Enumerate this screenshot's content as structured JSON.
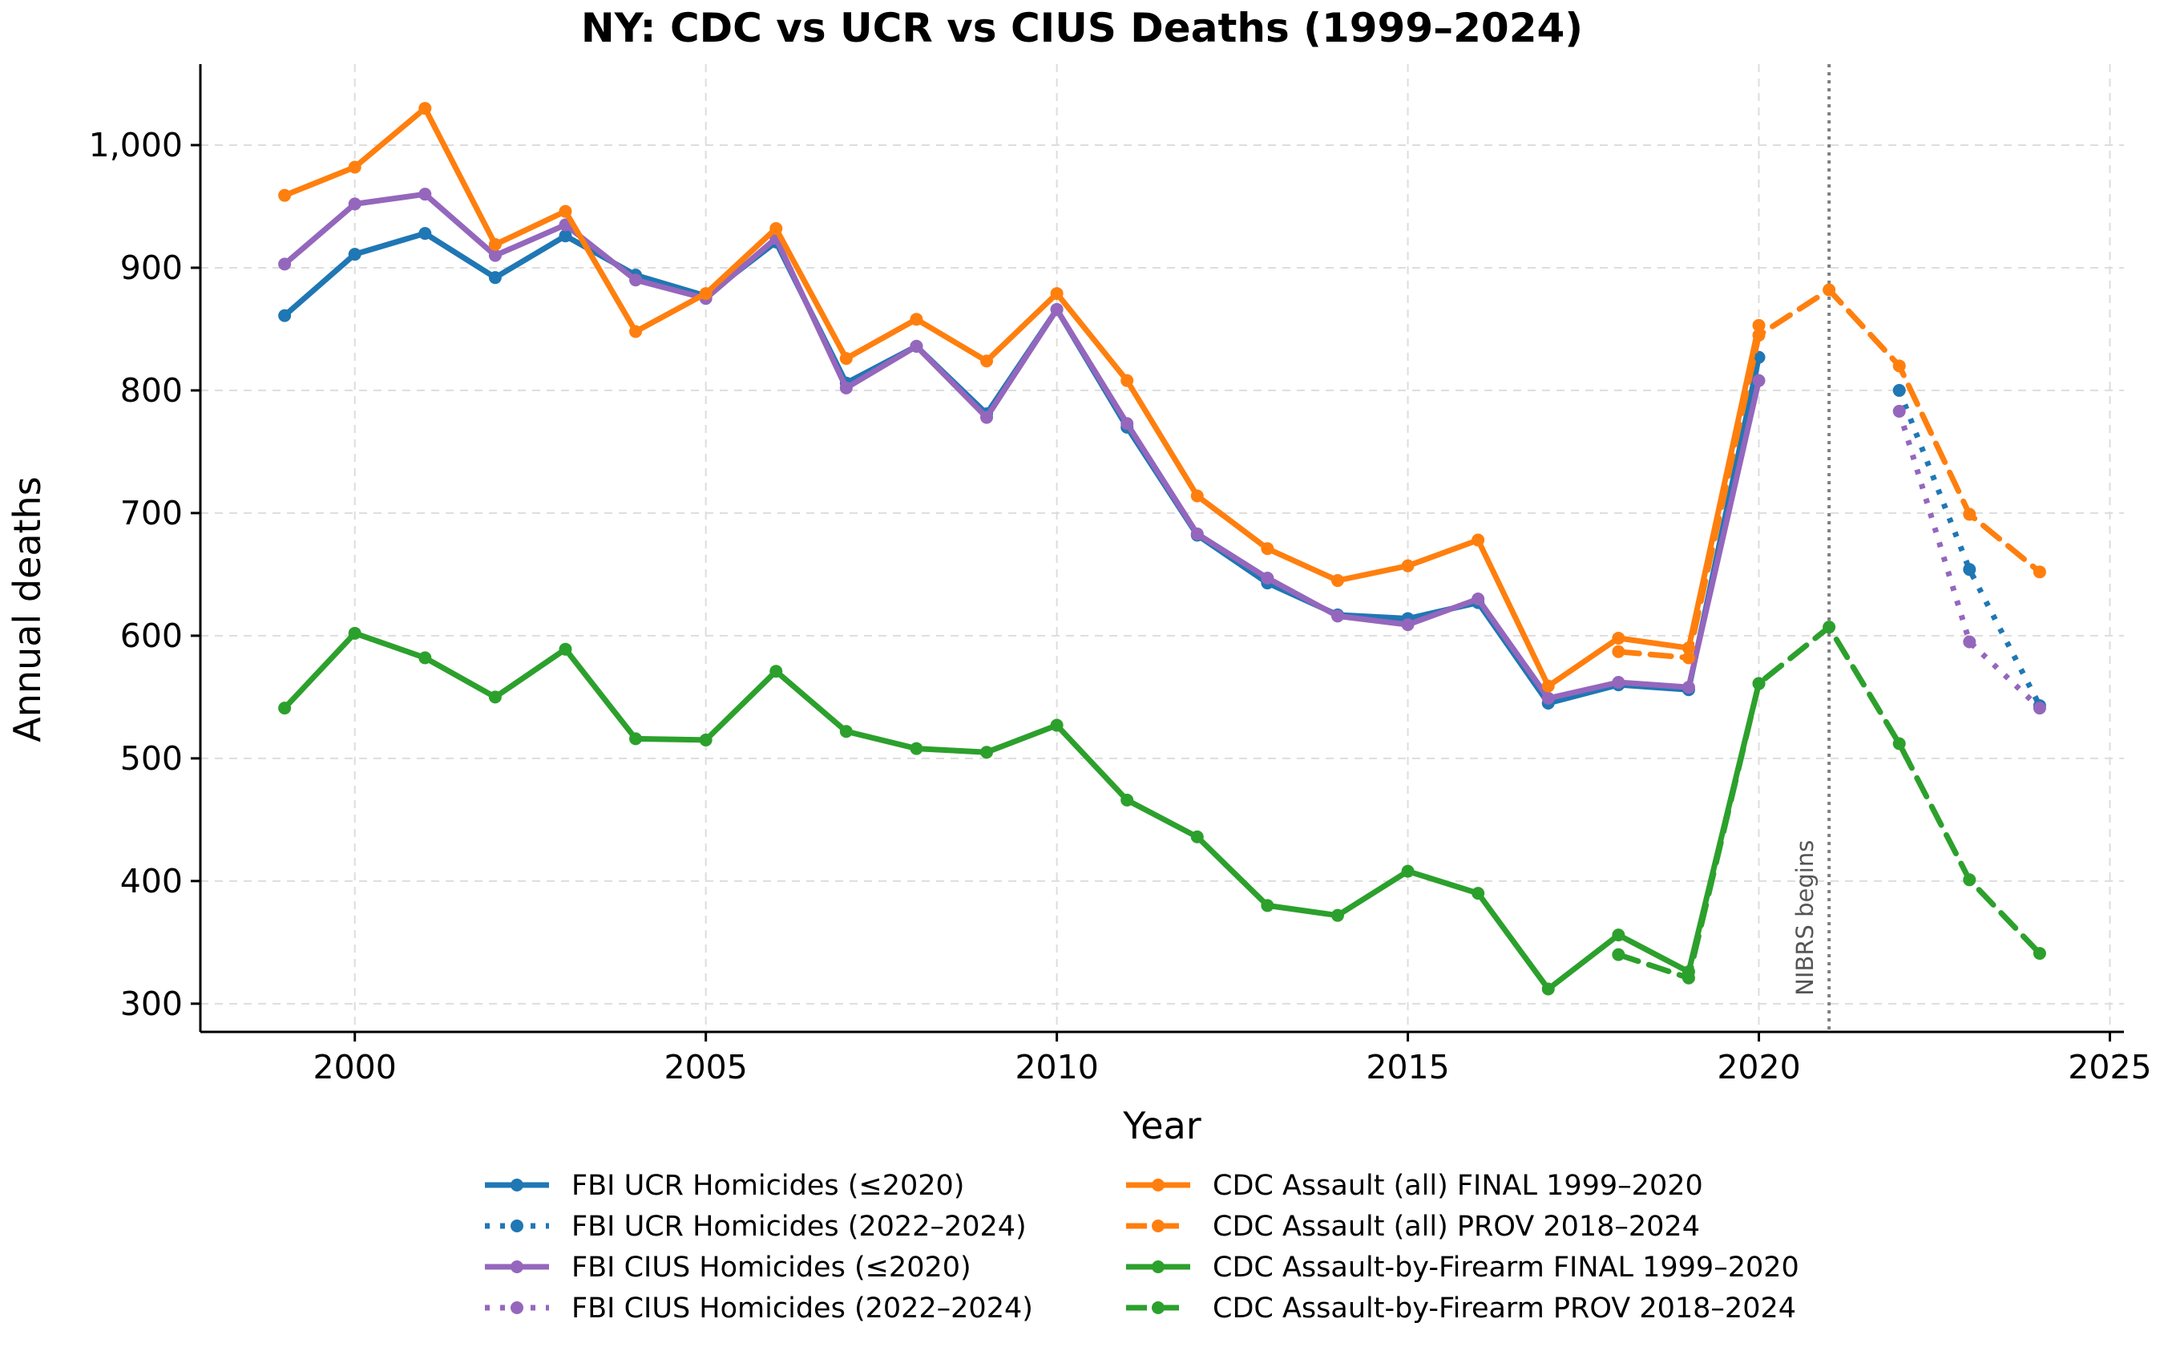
{
  "chart_data": {
    "type": "line",
    "title": "NY: CDC vs UCR vs CIUS Deaths (1999–2024)",
    "xlabel": "Year",
    "ylabel": "Annual deaths",
    "xlim": [
      1997.8,
      2025.2
    ],
    "ylim": [
      277,
      1066
    ],
    "xticks": [
      2000,
      2005,
      2010,
      2015,
      2020,
      2025
    ],
    "xtick_labels": [
      "2000",
      "2005",
      "2010",
      "2015",
      "2020",
      "2025"
    ],
    "yticks": [
      300,
      400,
      500,
      600,
      700,
      800,
      900,
      1000
    ],
    "ytick_labels": [
      "300",
      "400",
      "500",
      "600",
      "700",
      "800",
      "900",
      "1,000"
    ],
    "grid": true,
    "legend_position": "bottom",
    "annotation": {
      "x": 2021,
      "text": "NIBRS begins",
      "color": "#808080"
    },
    "series": [
      {
        "name": "FBI UCR Homicides (≤2020)",
        "color": "#1f77b4",
        "style": "solid",
        "x": [
          1999,
          2000,
          2001,
          2002,
          2003,
          2004,
          2005,
          2006,
          2007,
          2008,
          2009,
          2010,
          2011,
          2012,
          2013,
          2014,
          2015,
          2016,
          2017,
          2018,
          2019,
          2020
        ],
        "y": [
          861,
          911,
          928,
          892,
          926,
          894,
          877,
          921,
          806,
          836,
          781,
          866,
          770,
          682,
          643,
          617,
          614,
          627,
          545,
          560,
          556,
          827
        ]
      },
      {
        "name": "FBI UCR Homicides (2022–2024)",
        "color": "#1f77b4",
        "style": "dotted",
        "x": [
          2022,
          2023,
          2024
        ],
        "y": [
          800,
          654,
          543
        ]
      },
      {
        "name": "FBI CIUS Homicides (≤2020)",
        "color": "#9467bd",
        "style": "solid",
        "x": [
          1999,
          2000,
          2001,
          2002,
          2003,
          2004,
          2005,
          2006,
          2007,
          2008,
          2009,
          2010,
          2011,
          2012,
          2013,
          2014,
          2015,
          2016,
          2017,
          2018,
          2019,
          2020
        ],
        "y": [
          903,
          952,
          960,
          910,
          935,
          890,
          875,
          924,
          802,
          836,
          778,
          866,
          773,
          683,
          647,
          616,
          609,
          630,
          549,
          562,
          558,
          808
        ]
      },
      {
        "name": "FBI CIUS Homicides (2022–2024)",
        "color": "#9467bd",
        "style": "dotted",
        "x": [
          2022,
          2023,
          2024
        ],
        "y": [
          783,
          595,
          541
        ]
      },
      {
        "name": "CDC Assault (all) FINAL 1999–2020",
        "color": "#ff7f0e",
        "style": "solid",
        "x": [
          1999,
          2000,
          2001,
          2002,
          2003,
          2004,
          2005,
          2006,
          2007,
          2008,
          2009,
          2010,
          2011,
          2012,
          2013,
          2014,
          2015,
          2016,
          2017,
          2018,
          2019,
          2020
        ],
        "y": [
          959,
          982,
          1030,
          919,
          946,
          848,
          879,
          932,
          826,
          858,
          824,
          879,
          808,
          714,
          671,
          645,
          657,
          678,
          559,
          598,
          590,
          853
        ]
      },
      {
        "name": "CDC Assault (all) PROV 2018–2024",
        "color": "#ff7f0e",
        "style": "dashed",
        "x": [
          2018,
          2019,
          2020,
          2021,
          2022,
          2023,
          2024
        ],
        "y": [
          587,
          582,
          845,
          882,
          820,
          699,
          652
        ]
      },
      {
        "name": "CDC Assault-by-Firearm FINAL 1999–2020",
        "color": "#2ca02c",
        "style": "solid",
        "x": [
          1999,
          2000,
          2001,
          2002,
          2003,
          2004,
          2005,
          2006,
          2007,
          2008,
          2009,
          2010,
          2011,
          2012,
          2013,
          2014,
          2015,
          2016,
          2017,
          2018,
          2019,
          2020
        ],
        "y": [
          541,
          602,
          582,
          550,
          589,
          516,
          515,
          571,
          522,
          508,
          505,
          527,
          466,
          436,
          380,
          372,
          408,
          390,
          312,
          356,
          326,
          561
        ]
      },
      {
        "name": "CDC Assault-by-Firearm PROV 2018–2024",
        "color": "#2ca02c",
        "style": "dashed",
        "x": [
          2018,
          2019,
          2020,
          2021,
          2022,
          2023,
          2024
        ],
        "y": [
          340,
          321,
          561,
          607,
          512,
          401,
          341
        ]
      }
    ]
  }
}
